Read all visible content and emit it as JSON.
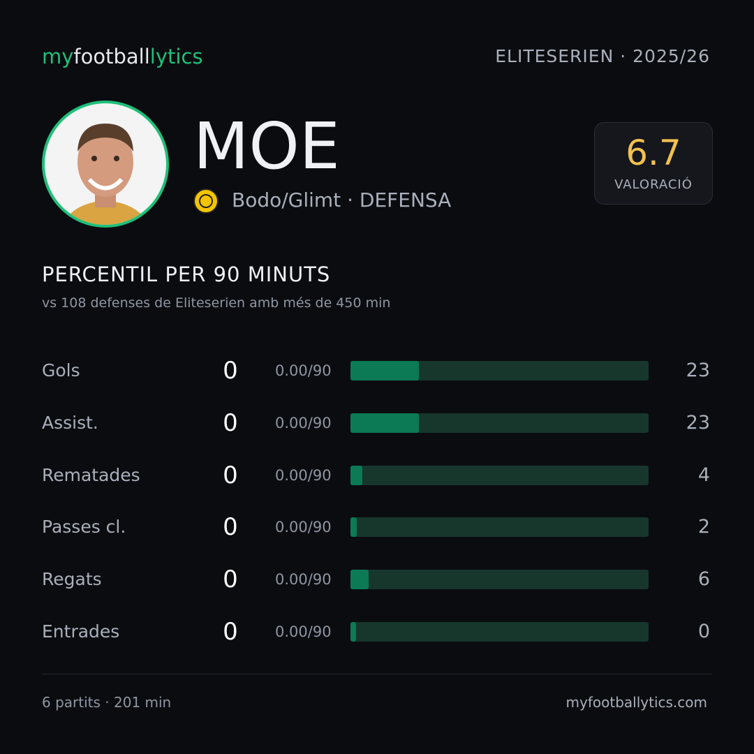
{
  "brand": {
    "part1": "my",
    "part2": "football",
    "part3": "lytics"
  },
  "league": "ELITESERIEN · 2025/26",
  "player": {
    "name": "MOE",
    "team_line": "Bodo/Glimt · DEFENSA",
    "rating": 6.7,
    "rating_label": "VALORACIÓ"
  },
  "section": {
    "title": "PERCENTIL PER 90 MINUTS",
    "subtitle": "vs 108 defenses de Eliteserien amb més de 450 min"
  },
  "stats": [
    {
      "label": "Gols",
      "value": 0,
      "per90": "0.00/90",
      "percentile": 23
    },
    {
      "label": "Assist.",
      "value": 0,
      "per90": "0.00/90",
      "percentile": 23
    },
    {
      "label": "Rematades",
      "value": 0,
      "per90": "0.00/90",
      "percentile": 4
    },
    {
      "label": "Passes cl.",
      "value": 0,
      "per90": "0.00/90",
      "percentile": 2
    },
    {
      "label": "Regats",
      "value": 0,
      "per90": "0.00/90",
      "percentile": 6
    },
    {
      "label": "Entrades",
      "value": 0,
      "per90": "0.00/90",
      "percentile": 0
    }
  ],
  "footer": {
    "left": "6 partits · 201 min",
    "right": "myfootballytics.com"
  }
}
